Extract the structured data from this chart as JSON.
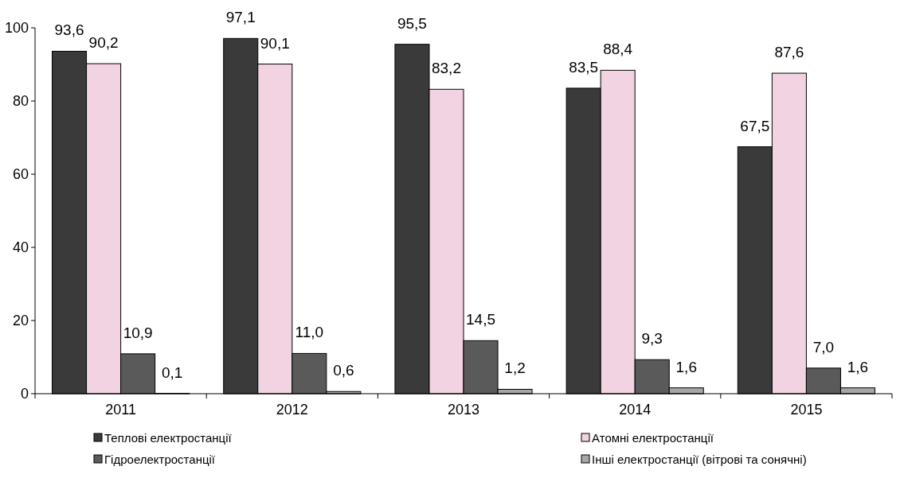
{
  "chart_data": {
    "type": "bar",
    "categories": [
      "2011",
      "2012",
      "2013",
      "2014",
      "2015"
    ],
    "series": [
      {
        "name": "Теплові електростанції",
        "color": "#3a3a3a",
        "values": [
          93.6,
          97.1,
          95.5,
          83.5,
          67.5
        ],
        "value_labels": [
          "93,6",
          "97,1",
          "95,5",
          "83,5",
          "67,5"
        ]
      },
      {
        "name": "Атомні електростанції",
        "color": "#f2d3e2",
        "values": [
          90.2,
          90.1,
          83.2,
          88.4,
          87.6
        ],
        "value_labels": [
          "90,2",
          "90,1",
          "83,2",
          "88,4",
          "87,6"
        ]
      },
      {
        "name": "Гідроелектростанції",
        "color": "#5a5a5a",
        "values": [
          10.9,
          11.0,
          14.5,
          9.3,
          7.0
        ],
        "value_labels": [
          "10,9",
          "11,0",
          "14,5",
          "9,3",
          "7,0"
        ]
      },
      {
        "name": "Інші електростанції (вітрові та сонячні)",
        "color": "#a6a6a6",
        "values": [
          0.1,
          0.6,
          1.2,
          1.6,
          1.6
        ],
        "value_labels": [
          "0,1",
          "0,6",
          "1,2",
          "1,6",
          "1,6"
        ]
      }
    ],
    "ylim": [
      0,
      100
    ],
    "yticks": [
      0,
      20,
      40,
      60,
      80,
      100
    ],
    "grid": false,
    "legend": "bottom"
  }
}
